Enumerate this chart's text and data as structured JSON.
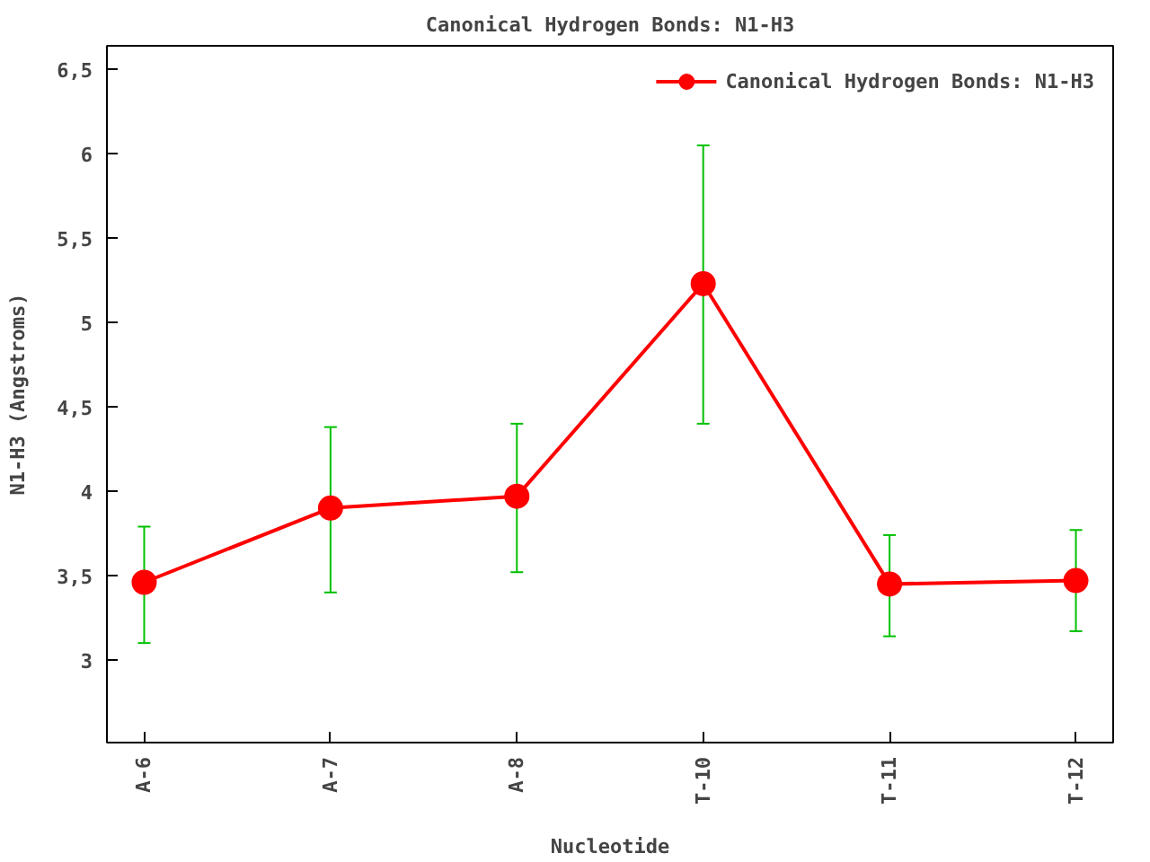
{
  "chart_data": {
    "type": "line",
    "title": "Canonical Hydrogen Bonds: N1-H3",
    "xlabel": "Nucleotide",
    "ylabel": "N1-H3 (Angstroms)",
    "categories": [
      "A-6",
      "A-7",
      "A-8",
      "T-10",
      "T-11",
      "T-12"
    ],
    "series": [
      {
        "name": "Canonical Hydrogen Bonds: N1-H3",
        "color": "#ff0000",
        "values": [
          3.46,
          3.9,
          3.97,
          5.23,
          3.45,
          3.47
        ],
        "errors": [
          [
            3.1,
            3.79
          ],
          [
            3.4,
            4.38
          ],
          [
            3.52,
            4.4
          ],
          [
            4.4,
            6.05
          ],
          [
            3.14,
            3.74
          ],
          [
            3.17,
            3.77
          ]
        ]
      }
    ],
    "ylim": [
      2.51,
      6.64
    ],
    "yticks": [
      3,
      {
        "value": 3.5,
        "label": "3,5"
      },
      4,
      {
        "value": 4.5,
        "label": "4,5"
      },
      5,
      {
        "value": 5.5,
        "label": "5,5"
      },
      6,
      {
        "value": 6.5,
        "label": "6,5"
      }
    ],
    "legend": "top right",
    "marker": "circle",
    "line_style": "solid",
    "grid": false
  }
}
